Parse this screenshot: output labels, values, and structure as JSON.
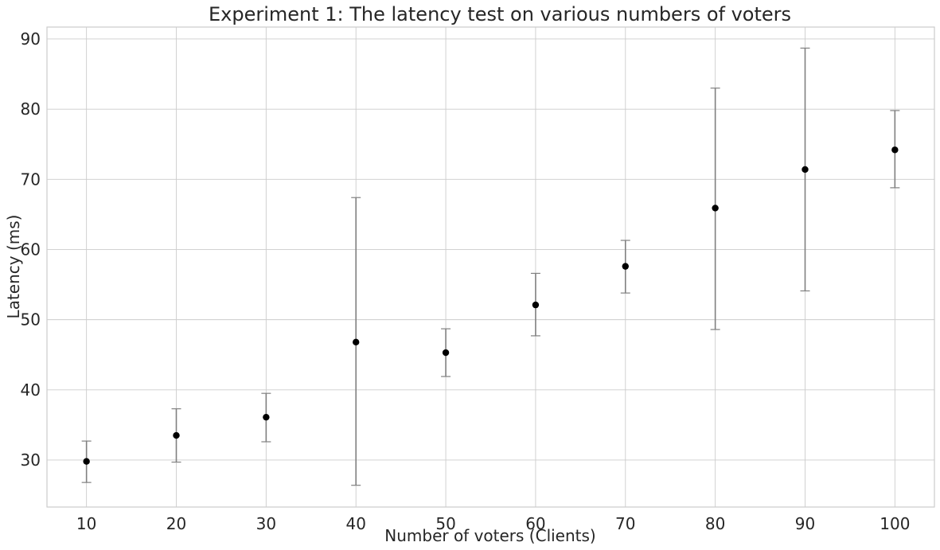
{
  "chart_data": {
    "type": "scatter",
    "title": "Experiment 1: The latency test on various numbers of voters",
    "xlabel": "Number of voters (Clients)",
    "ylabel": "Latency (ms)",
    "x": [
      10,
      20,
      30,
      40,
      50,
      60,
      70,
      80,
      90,
      100
    ],
    "y": [
      29.8,
      33.5,
      36.1,
      46.8,
      45.3,
      52.1,
      57.6,
      65.9,
      71.4,
      74.2
    ],
    "yerr_low": [
      26.8,
      29.7,
      32.6,
      26.4,
      41.9,
      47.7,
      53.8,
      48.6,
      54.1,
      68.8
    ],
    "yerr_high": [
      32.7,
      37.3,
      39.5,
      67.4,
      48.7,
      56.6,
      61.3,
      83.0,
      88.7,
      79.8
    ],
    "xticks": [
      "10",
      "20",
      "30",
      "40",
      "50",
      "60",
      "70",
      "80",
      "90",
      "100"
    ],
    "yticks": [
      30,
      40,
      50,
      60,
      70,
      80,
      90
    ],
    "ytick_labels": [
      "30",
      "40",
      "50",
      "60",
      "70",
      "80",
      "90"
    ],
    "xlim": [
      5.6,
      104.4
    ],
    "ylim": [
      23.3,
      91.7
    ],
    "grid": true,
    "legend": "none",
    "marker_color": "#000000",
    "errorbar_color": "#808080",
    "grid_color": "#cccccc"
  }
}
